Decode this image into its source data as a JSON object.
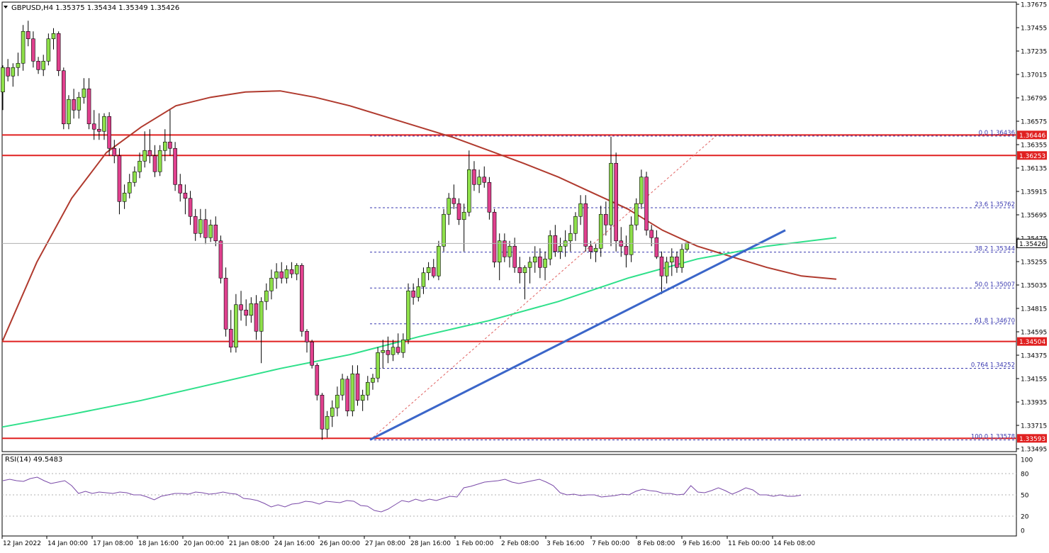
{
  "header": {
    "symbol_line": "GBPUSD,H4  1.35375 1.35434 1.35349 1.35426"
  },
  "rsi_panel": {
    "label": "RSI(14) 49.5483"
  },
  "colors": {
    "bull": "#8ee04a",
    "bear": "#e0408e",
    "ma_slow": "#b03a2e",
    "ma_fast": "#2ee08a",
    "trendline": "#3b66c9",
    "level": "#e02020",
    "fib": "#3a3ab0",
    "rsi": "#7a4aa8"
  },
  "chart_data": {
    "type": "candlestick",
    "symbol": "GBPUSD",
    "timeframe": "H4",
    "ylim": [
      1.33495,
      1.37675
    ],
    "y_ticks": [
      "1.37675",
      "1.37455",
      "1.37235",
      "1.37015",
      "1.36795",
      "1.36575",
      "1.36355",
      "1.36135",
      "1.35915",
      "1.35695",
      "1.35475",
      "1.35255",
      "1.35035",
      "1.34815",
      "1.34595",
      "1.34375",
      "1.34155",
      "1.33935",
      "1.33715",
      "1.33495"
    ],
    "x_ticks": [
      "12 Jan 2022",
      "14 Jan 00:00",
      "17 Jan 08:00",
      "18 Jan 16:00",
      "20 Jan 00:00",
      "21 Jan 08:00",
      "24 Jan 16:00",
      "26 Jan 00:00",
      "27 Jan 08:00",
      "28 Jan 16:00",
      "1 Feb 00:00",
      "2 Feb 08:00",
      "3 Feb 16:00",
      "7 Feb 00:00",
      "8 Feb 08:00",
      "9 Feb 16:00",
      "11 Feb 00:00",
      "14 Feb 08:00"
    ],
    "current_price": 1.35426,
    "price_labels": [
      "1.36446",
      "1.36253",
      "1.35426",
      "1.34504",
      "1.33593"
    ],
    "horizontal_levels": [
      1.36446,
      1.36253,
      1.34504,
      1.33593
    ],
    "fibonacci": [
      {
        "label": "0.0 1.36436",
        "value": 1.36436
      },
      {
        "label": "23.6 1.35762",
        "value": 1.35762
      },
      {
        "label": "38.2 1.35344",
        "value": 1.35344
      },
      {
        "label": "50.0 1.35007",
        "value": 1.35007
      },
      {
        "label": "61.8 1.34670",
        "value": 1.3467
      },
      {
        "label": "0.764 1.34252",
        "value": 1.34252
      },
      {
        "label": "100.0 1.33578",
        "value": 1.33578
      }
    ],
    "candles": [
      [
        1.3685,
        1.371,
        1.3668,
        1.3708
      ],
      [
        1.3708,
        1.3716,
        1.3695,
        1.37
      ],
      [
        1.37,
        1.3712,
        1.369,
        1.3708
      ],
      [
        1.3708,
        1.3722,
        1.37,
        1.3712
      ],
      [
        1.3712,
        1.3748,
        1.3705,
        1.3742
      ],
      [
        1.3742,
        1.3752,
        1.3728,
        1.3735
      ],
      [
        1.3735,
        1.3742,
        1.3708,
        1.3714
      ],
      [
        1.3714,
        1.3718,
        1.3702,
        1.3706
      ],
      [
        1.3706,
        1.372,
        1.37,
        1.3714
      ],
      [
        1.3714,
        1.374,
        1.371,
        1.3735
      ],
      [
        1.3735,
        1.3745,
        1.3725,
        1.374
      ],
      [
        1.374,
        1.3742,
        1.37,
        1.3705
      ],
      [
        1.3705,
        1.3708,
        1.365,
        1.3655
      ],
      [
        1.3655,
        1.3682,
        1.365,
        1.3678
      ],
      [
        1.3678,
        1.3688,
        1.366,
        1.3668
      ],
      [
        1.3668,
        1.3685,
        1.366,
        1.368
      ],
      [
        1.368,
        1.3698,
        1.3674,
        1.3688
      ],
      [
        1.3688,
        1.3698,
        1.365,
        1.3655
      ],
      [
        1.3655,
        1.3668,
        1.364,
        1.365
      ],
      [
        1.365,
        1.3665,
        1.364,
        1.3648
      ],
      [
        1.3648,
        1.3665,
        1.364,
        1.3662
      ],
      [
        1.3662,
        1.3666,
        1.3625,
        1.3632
      ],
      [
        1.3632,
        1.364,
        1.3618,
        1.3625
      ],
      [
        1.3625,
        1.3632,
        1.357,
        1.3582
      ],
      [
        1.3582,
        1.3598,
        1.3575,
        1.359
      ],
      [
        1.359,
        1.3608,
        1.3585,
        1.36
      ],
      [
        1.36,
        1.3615,
        1.3596,
        1.361
      ],
      [
        1.361,
        1.3628,
        1.3604,
        1.362
      ],
      [
        1.362,
        1.3648,
        1.3614,
        1.363
      ],
      [
        1.363,
        1.365,
        1.3618,
        1.3625
      ],
      [
        1.3625,
        1.3635,
        1.3605,
        1.361
      ],
      [
        1.361,
        1.3635,
        1.3606,
        1.363
      ],
      [
        1.363,
        1.365,
        1.362,
        1.3638
      ],
      [
        1.3638,
        1.3668,
        1.3625,
        1.3632
      ],
      [
        1.3632,
        1.3638,
        1.3592,
        1.3598
      ],
      [
        1.3598,
        1.3608,
        1.3582,
        1.359
      ],
      [
        1.359,
        1.3598,
        1.357,
        1.3585
      ],
      [
        1.3585,
        1.3592,
        1.356,
        1.3568
      ],
      [
        1.3568,
        1.3575,
        1.3545,
        1.3552
      ],
      [
        1.3552,
        1.3575,
        1.3548,
        1.3565
      ],
      [
        1.3565,
        1.3575,
        1.3542,
        1.3548
      ],
      [
        1.3548,
        1.3565,
        1.3544,
        1.356
      ],
      [
        1.356,
        1.3568,
        1.354,
        1.3545
      ],
      [
        1.3545,
        1.355,
        1.3505,
        1.351
      ],
      [
        1.351,
        1.352,
        1.3455,
        1.3462
      ],
      [
        1.3462,
        1.348,
        1.344,
        1.3445
      ],
      [
        1.3445,
        1.3495,
        1.344,
        1.3485
      ],
      [
        1.3485,
        1.3498,
        1.347,
        1.348
      ],
      [
        1.348,
        1.349,
        1.3465,
        1.3475
      ],
      [
        1.3475,
        1.3492,
        1.3468,
        1.3486
      ],
      [
        1.3486,
        1.3494,
        1.3452,
        1.346
      ],
      [
        1.346,
        1.3492,
        1.343,
        1.3488
      ],
      [
        1.3488,
        1.3505,
        1.348,
        1.3498
      ],
      [
        1.3498,
        1.3518,
        1.349,
        1.351
      ],
      [
        1.351,
        1.3524,
        1.35,
        1.3516
      ],
      [
        1.3516,
        1.3525,
        1.3505,
        1.351
      ],
      [
        1.351,
        1.3522,
        1.3505,
        1.3518
      ],
      [
        1.3518,
        1.3525,
        1.351,
        1.3514
      ],
      [
        1.3514,
        1.3524,
        1.3508,
        1.3522
      ],
      [
        1.3522,
        1.3524,
        1.3455,
        1.346
      ],
      [
        1.346,
        1.3462,
        1.344,
        1.345
      ],
      [
        1.345,
        1.3452,
        1.3425,
        1.3428
      ],
      [
        1.3428,
        1.343,
        1.3395,
        1.34
      ],
      [
        1.34,
        1.3402,
        1.3358,
        1.3368
      ],
      [
        1.3368,
        1.3385,
        1.336,
        1.338
      ],
      [
        1.338,
        1.3395,
        1.337,
        1.3388
      ],
      [
        1.3388,
        1.3408,
        1.338,
        1.34
      ],
      [
        1.34,
        1.342,
        1.3395,
        1.3415
      ],
      [
        1.3415,
        1.3418,
        1.338,
        1.3385
      ],
      [
        1.3385,
        1.3428,
        1.338,
        1.342
      ],
      [
        1.342,
        1.3428,
        1.339,
        1.3395
      ],
      [
        1.3395,
        1.3405,
        1.3385,
        1.34
      ],
      [
        1.34,
        1.3418,
        1.3395,
        1.3412
      ],
      [
        1.3412,
        1.342,
        1.3405,
        1.3416
      ],
      [
        1.3416,
        1.3445,
        1.3412,
        1.344
      ],
      [
        1.344,
        1.3452,
        1.3425,
        1.3442
      ],
      [
        1.3442,
        1.3455,
        1.343,
        1.3438
      ],
      [
        1.3438,
        1.3452,
        1.3432,
        1.3445
      ],
      [
        1.3445,
        1.3458,
        1.3438,
        1.344
      ],
      [
        1.344,
        1.3458,
        1.3435,
        1.3452
      ],
      [
        1.3452,
        1.3505,
        1.3448,
        1.3498
      ],
      [
        1.3498,
        1.3505,
        1.3485,
        1.3492
      ],
      [
        1.3492,
        1.351,
        1.3488,
        1.3502
      ],
      [
        1.3502,
        1.352,
        1.3495,
        1.3515
      ],
      [
        1.3515,
        1.3525,
        1.3508,
        1.352
      ],
      [
        1.352,
        1.3528,
        1.351,
        1.3512
      ],
      [
        1.3512,
        1.3545,
        1.3508,
        1.354
      ],
      [
        1.354,
        1.3575,
        1.3535,
        1.357
      ],
      [
        1.357,
        1.359,
        1.356,
        1.3585
      ],
      [
        1.3585,
        1.3598,
        1.3575,
        1.358
      ],
      [
        1.358,
        1.3585,
        1.356,
        1.3565
      ],
      [
        1.3565,
        1.358,
        1.3535,
        1.3572
      ],
      [
        1.3572,
        1.363,
        1.3568,
        1.3612
      ],
      [
        1.3612,
        1.362,
        1.3592,
        1.3598
      ],
      [
        1.3598,
        1.3612,
        1.359,
        1.3605
      ],
      [
        1.3605,
        1.3615,
        1.3595,
        1.36
      ],
      [
        1.36,
        1.3605,
        1.3565,
        1.3572
      ],
      [
        1.3572,
        1.3575,
        1.352,
        1.3525
      ],
      [
        1.3525,
        1.3552,
        1.3508,
        1.3545
      ],
      [
        1.3545,
        1.3552,
        1.3525,
        1.353
      ],
      [
        1.353,
        1.3545,
        1.352,
        1.354
      ],
      [
        1.354,
        1.3548,
        1.3515,
        1.352
      ],
      [
        1.352,
        1.353,
        1.3505,
        1.3515
      ],
      [
        1.3515,
        1.3522,
        1.349,
        1.352
      ],
      [
        1.352,
        1.353,
        1.3505,
        1.3525
      ],
      [
        1.3525,
        1.354,
        1.3515,
        1.353
      ],
      [
        1.353,
        1.3538,
        1.351,
        1.352
      ],
      [
        1.352,
        1.3535,
        1.3508,
        1.3528
      ],
      [
        1.3528,
        1.3555,
        1.3522,
        1.355
      ],
      [
        1.355,
        1.356,
        1.353,
        1.3535
      ],
      [
        1.3535,
        1.3548,
        1.3528,
        1.354
      ],
      [
        1.354,
        1.3555,
        1.353,
        1.3545
      ],
      [
        1.3545,
        1.356,
        1.3535,
        1.3552
      ],
      [
        1.3552,
        1.3572,
        1.3545,
        1.3568
      ],
      [
        1.3568,
        1.3588,
        1.356,
        1.358
      ],
      [
        1.358,
        1.3588,
        1.3535,
        1.354
      ],
      [
        1.354,
        1.3545,
        1.3528,
        1.3535
      ],
      [
        1.3535,
        1.3542,
        1.3525,
        1.3538
      ],
      [
        1.3538,
        1.3578,
        1.353,
        1.357
      ],
      [
        1.357,
        1.3582,
        1.355,
        1.356
      ],
      [
        1.356,
        1.3643,
        1.354,
        1.3618
      ],
      [
        1.3618,
        1.3628,
        1.3535,
        1.3545
      ],
      [
        1.3545,
        1.3558,
        1.353,
        1.354
      ],
      [
        1.354,
        1.355,
        1.352,
        1.3532
      ],
      [
        1.3532,
        1.3568,
        1.3525,
        1.356
      ],
      [
        1.356,
        1.3585,
        1.3555,
        1.358
      ],
      [
        1.358,
        1.3612,
        1.3575,
        1.3605
      ],
      [
        1.3605,
        1.361,
        1.355,
        1.3555
      ],
      [
        1.3555,
        1.356,
        1.354,
        1.3548
      ],
      [
        1.3548,
        1.3555,
        1.3528,
        1.353
      ],
      [
        1.353,
        1.3535,
        1.3495,
        1.3512
      ],
      [
        1.3512,
        1.353,
        1.3505,
        1.3525
      ],
      [
        1.3525,
        1.3538,
        1.3512,
        1.353
      ],
      [
        1.353,
        1.3535,
        1.3515,
        1.352
      ],
      [
        1.352,
        1.3542,
        1.3515,
        1.3537
      ],
      [
        1.3537,
        1.3543,
        1.3535,
        1.3543
      ]
    ],
    "ma_slow": [
      [
        0,
        1.345
      ],
      [
        10,
        1.3525
      ],
      [
        20,
        1.3585
      ],
      [
        30,
        1.3628
      ],
      [
        40,
        1.3652
      ],
      [
        50,
        1.3672
      ],
      [
        60,
        1.368
      ],
      [
        70,
        1.3685
      ],
      [
        80,
        1.3686
      ],
      [
        90,
        1.368
      ],
      [
        100,
        1.3672
      ],
      [
        110,
        1.3662
      ],
      [
        120,
        1.3652
      ],
      [
        130,
        1.3642
      ],
      [
        140,
        1.363
      ],
      [
        150,
        1.3618
      ],
      [
        160,
        1.3605
      ],
      [
        170,
        1.359
      ],
      [
        180,
        1.3575
      ],
      [
        190,
        1.3555
      ],
      [
        200,
        1.354
      ],
      [
        210,
        1.353
      ],
      [
        220,
        1.352
      ],
      [
        230,
        1.3512
      ],
      [
        240,
        1.3509
      ]
    ],
    "ma_fast": [
      [
        0,
        1.337
      ],
      [
        20,
        1.3382
      ],
      [
        40,
        1.3395
      ],
      [
        60,
        1.341
      ],
      [
        80,
        1.3425
      ],
      [
        100,
        1.3438
      ],
      [
        120,
        1.3455
      ],
      [
        140,
        1.347
      ],
      [
        160,
        1.3488
      ],
      [
        180,
        1.351
      ],
      [
        200,
        1.3528
      ],
      [
        220,
        1.354
      ],
      [
        240,
        1.3548
      ]
    ],
    "trendline": {
      "from": [
        0,
        1.3358
      ],
      "to": [
        1,
        1.3555
      ]
    },
    "rsi": {
      "period": 14,
      "value": 49.5483,
      "ylim": [
        0,
        100
      ],
      "ticks": [
        100,
        80,
        50,
        20,
        0
      ],
      "levels": [
        80,
        50,
        20
      ],
      "values": [
        70,
        72,
        70,
        69,
        73,
        75,
        70,
        66,
        68,
        70,
        63,
        52,
        55,
        52,
        54,
        53,
        52,
        54,
        53,
        50,
        50,
        47,
        43,
        48,
        50,
        52,
        52,
        51,
        54,
        53,
        51,
        52,
        54,
        52,
        51,
        45,
        44,
        42,
        38,
        33,
        36,
        33,
        37,
        38,
        41,
        40,
        37,
        41,
        40,
        39,
        42,
        41,
        35,
        34,
        28,
        26,
        30,
        36,
        42,
        40,
        44,
        41,
        44,
        42,
        45,
        48,
        47,
        60,
        62,
        65,
        68,
        69,
        70,
        72,
        68,
        66,
        68,
        70,
        72,
        68,
        63,
        53,
        50,
        51,
        49,
        50,
        50,
        47,
        48,
        49,
        51,
        50,
        55,
        58,
        56,
        55,
        52,
        52,
        50,
        51,
        63,
        54,
        53,
        56,
        60,
        56,
        51,
        55,
        60,
        57,
        50,
        50,
        48,
        50,
        48,
        48,
        49.5
      ]
    }
  }
}
